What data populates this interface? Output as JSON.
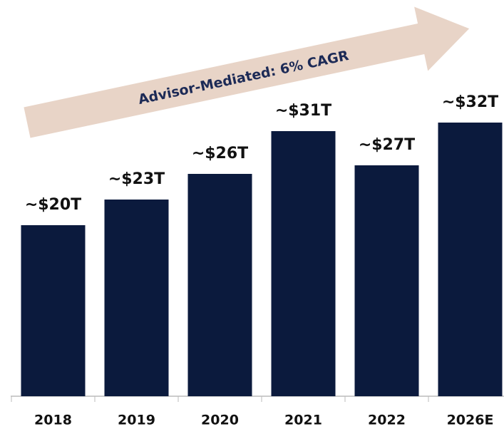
{
  "chart_data": {
    "type": "bar",
    "annotation": "Advisor-Mediated: 6% CAGR",
    "categories": [
      "2018",
      "2019",
      "2020",
      "2021",
      "2022",
      "2026E"
    ],
    "values": [
      20,
      23,
      26,
      31,
      27,
      32
    ],
    "value_labels": [
      "~$20T",
      "~$23T",
      "~$26T",
      "~$31T",
      "~$27T",
      "~$32T"
    ],
    "color": "#0b1a3d"
  }
}
